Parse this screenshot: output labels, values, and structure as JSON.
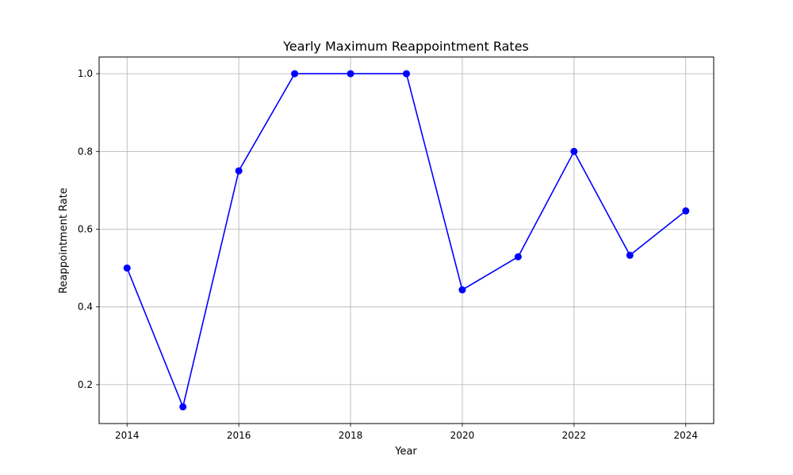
{
  "chart_data": {
    "type": "line",
    "title": "Yearly Maximum Reappointment Rates",
    "xlabel": "Year",
    "ylabel": "Reappointment Rate",
    "x": [
      2014,
      2015,
      2016,
      2017,
      2018,
      2019,
      2020,
      2021,
      2022,
      2023,
      2024
    ],
    "series": [
      {
        "values": [
          0.5,
          0.143,
          0.75,
          1.0,
          1.0,
          1.0,
          0.444,
          0.529,
          0.8,
          0.533,
          0.647
        ],
        "color": "#0000ff"
      }
    ],
    "xlim": [
      2013.5,
      2024.5
    ],
    "ylim": [
      0.1,
      1.043
    ],
    "xticks": [
      2014,
      2016,
      2018,
      2020,
      2022,
      2024
    ],
    "yticks": [
      0.2,
      0.4,
      0.6,
      0.8,
      1.0
    ],
    "ytick_labels": [
      "0.2",
      "0.4",
      "0.6",
      "0.8",
      "1.0"
    ],
    "grid": true,
    "marker": "circle"
  }
}
